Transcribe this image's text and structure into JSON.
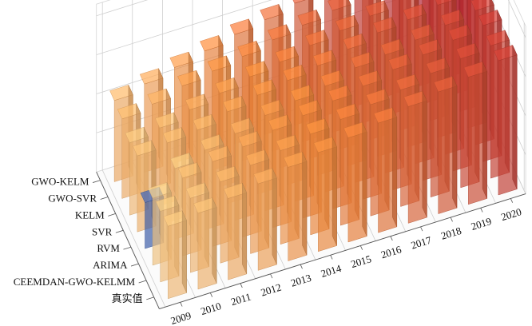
{
  "chart_data": {
    "type": "bar3d",
    "title": "",
    "xlabel": "",
    "ylabel": "",
    "zlabel": "",
    "x_categories": [
      "2009",
      "2010",
      "2011",
      "2012",
      "2013",
      "2014",
      "2015",
      "2016",
      "2017",
      "2018",
      "2019",
      "2020"
    ],
    "series_labels": [
      "真实值",
      "CEEMDAN-GWO-KELMM",
      "ARIMA",
      "RVM",
      "SVR",
      "KELM",
      "GWO-SVR",
      "GWO-KELM"
    ],
    "grid": true,
    "colormap_low": "#fdf2b3",
    "colormap_mid": "#f48a3c",
    "colormap_high": "#b01030",
    "highlight_color": "#3b5fb0",
    "series": [
      {
        "name": "真实值",
        "values": [
          4.1,
          4.3,
          4.6,
          4.9,
          5.3,
          5.6,
          5.9,
          6.2,
          6.6,
          6.9,
          7.2,
          7.6
        ]
      },
      {
        "name": "CEEMDAN-GWO-KELMM",
        "values": [
          4.0,
          4.2,
          4.6,
          5.0,
          5.3,
          5.7,
          6.0,
          6.3,
          6.6,
          7.0,
          7.3,
          7.5
        ]
      },
      {
        "name": "ARIMA",
        "values": [
          3.8,
          4.4,
          4.8,
          5.1,
          5.5,
          5.8,
          6.1,
          6.4,
          6.8,
          7.1,
          7.4,
          7.7
        ]
      },
      {
        "name": "RVM",
        "values": [
          2.6,
          4.0,
          4.5,
          4.9,
          5.4,
          5.7,
          6.0,
          6.5,
          6.7,
          7.0,
          7.3,
          7.6
        ]
      },
      {
        "name": "SVR",
        "values": [
          4.3,
          4.5,
          4.7,
          5.2,
          5.6,
          5.9,
          6.2,
          6.6,
          7.0,
          7.2,
          7.5,
          7.8
        ]
      },
      {
        "name": "KELM",
        "values": [
          4.1,
          4.4,
          4.9,
          5.3,
          5.7,
          6.0,
          6.4,
          6.7,
          7.0,
          7.4,
          7.7,
          8.0
        ]
      },
      {
        "name": "GWO-SVR",
        "values": [
          4.5,
          4.8,
          5.3,
          5.6,
          5.9,
          6.3,
          6.6,
          6.9,
          7.2,
          7.5,
          7.8,
          8.1
        ]
      },
      {
        "name": "GWO-KELM",
        "values": [
          4.6,
          5.0,
          5.4,
          5.8,
          6.2,
          6.5,
          6.9,
          7.3,
          7.7,
          8.0,
          8.4,
          8.8
        ]
      }
    ],
    "highlighted_bar": {
      "series": "RVM",
      "category": "2009"
    }
  }
}
